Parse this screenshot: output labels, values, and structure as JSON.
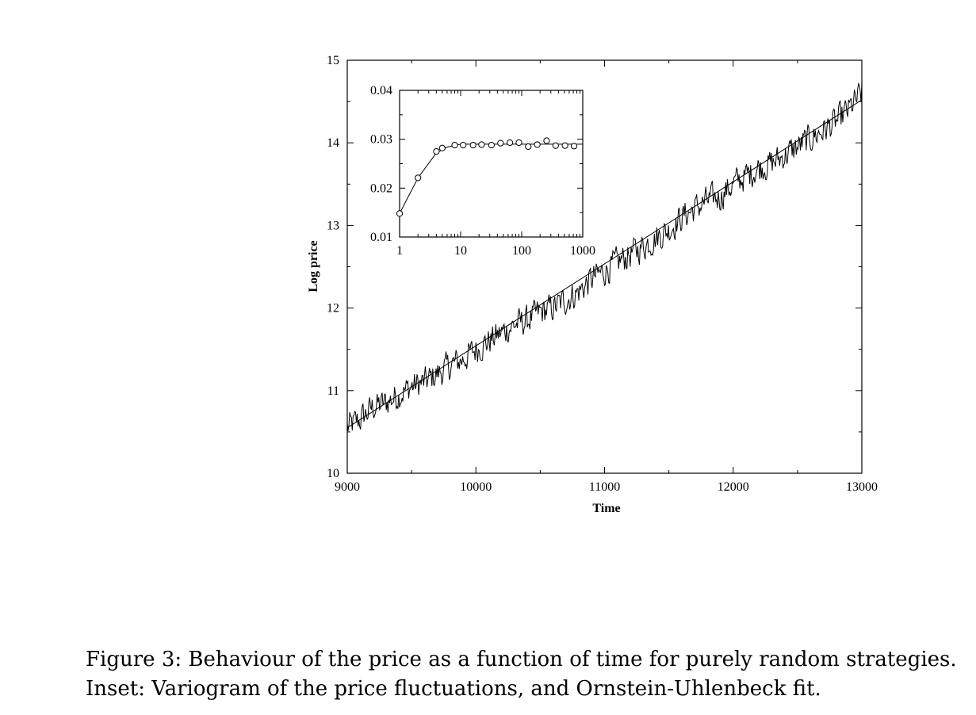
{
  "chart_data": [
    {
      "type": "line",
      "title": "",
      "xlabel": "Time",
      "ylabel": "Log price",
      "xlim": [
        9000,
        13000
      ],
      "ylim": [
        10,
        15
      ],
      "xticks": [
        "9000",
        "10000",
        "11000",
        "12000",
        "13000"
      ],
      "yticks": [
        "10",
        "11",
        "12",
        "13",
        "14",
        "15"
      ],
      "grid": false,
      "series": [
        {
          "style": "noisy line",
          "x": [
            9000,
            9100,
            9200,
            9300,
            9400,
            9500,
            9600,
            9700,
            9800,
            9900,
            10000,
            10100,
            10200,
            10300,
            10400,
            10500,
            10600,
            10700,
            10800,
            10900,
            11000,
            11100,
            11200,
            11300,
            11400,
            11500,
            11600,
            11700,
            11800,
            11900,
            12000,
            12100,
            12200,
            12300,
            12400,
            12500,
            12600,
            12700,
            12800,
            12900,
            13000
          ],
          "y": [
            10.55,
            10.65,
            10.8,
            10.85,
            10.95,
            11.05,
            11.1,
            11.2,
            11.3,
            11.38,
            11.5,
            11.6,
            11.7,
            11.8,
            11.85,
            11.95,
            12.0,
            12.1,
            12.2,
            12.35,
            12.45,
            12.55,
            12.65,
            12.75,
            12.85,
            12.95,
            13.1,
            13.2,
            13.3,
            13.35,
            13.5,
            13.6,
            13.7,
            13.75,
            13.85,
            13.95,
            14.05,
            14.15,
            14.25,
            14.4,
            14.6
          ]
        },
        {
          "style": "straight trend line",
          "x": [
            9000,
            13000
          ],
          "y": [
            10.55,
            14.52
          ]
        }
      ]
    },
    {
      "type": "scatter",
      "inset": true,
      "title": "",
      "xlabel": "",
      "ylabel": "",
      "xscale": "log",
      "xlim": [
        1,
        1000
      ],
      "ylim": [
        0.01,
        0.04
      ],
      "xticks": [
        "1",
        "10",
        "100",
        "1000"
      ],
      "yticks": [
        "0.01",
        "0.02",
        "0.03",
        "0.04"
      ],
      "grid": false,
      "series": [
        {
          "style": "open circles",
          "x": [
            1,
            2,
            4,
            5,
            8,
            11,
            16,
            22,
            32,
            45,
            64,
            90,
            128,
            180,
            256,
            360,
            512,
            720
          ],
          "y": [
            0.0148,
            0.0221,
            0.0275,
            0.0282,
            0.0288,
            0.0288,
            0.0288,
            0.0289,
            0.0288,
            0.0292,
            0.0293,
            0.0293,
            0.0285,
            0.0289,
            0.0297,
            0.0287,
            0.0287,
            0.0286
          ]
        },
        {
          "style": "solid fit line",
          "x": [
            1,
            2,
            4,
            6,
            10,
            1000
          ],
          "y": [
            0.0148,
            0.0221,
            0.0272,
            0.0284,
            0.029,
            0.029
          ]
        }
      ]
    }
  ],
  "caption": {
    "line1": "Figure 3:  Behaviour of the price as a function of time for purely random strategies.",
    "line2": "Inset:  Variogram of the price fluctuations, and Ornstein-Uhlenbeck fit."
  }
}
